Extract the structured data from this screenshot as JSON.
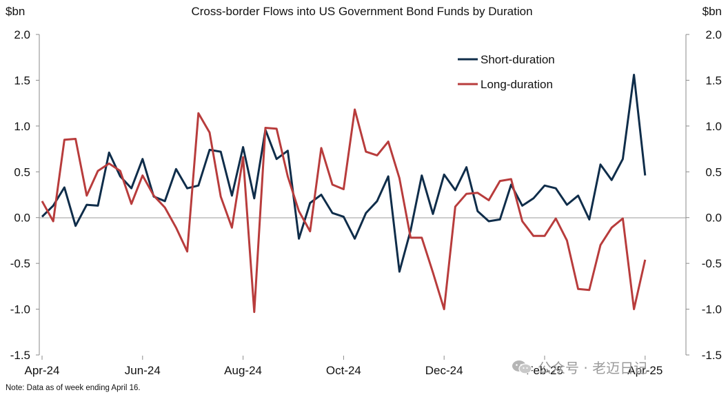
{
  "chart_data": {
    "type": "line",
    "title": "Cross-border Flows into US Government Bond Funds by Duration",
    "ylabel_left": "$bn",
    "ylabel_right": "$bn",
    "ylim": [
      -1.5,
      2.0
    ],
    "yticks": [
      "2.0",
      "1.5",
      "1.0",
      "0.5",
      "0.0",
      "-0.5",
      "-1.0",
      "-1.5"
    ],
    "ytick_values": [
      2.0,
      1.5,
      1.0,
      0.5,
      0.0,
      -0.5,
      -1.0,
      -1.5
    ],
    "xticks": [
      "Apr-24",
      "Jun-24",
      "Aug-24",
      "Oct-24",
      "Dec-24",
      "Feb-25",
      "Apr-25"
    ],
    "xtick_index": [
      0,
      9,
      18,
      27,
      36,
      45,
      54
    ],
    "legend_position": "top-right",
    "grid": false,
    "series": [
      {
        "name": "Short-duration",
        "color": "#0f2d4a",
        "values": [
          0.01,
          0.13,
          0.33,
          -0.09,
          0.14,
          0.13,
          0.71,
          0.45,
          0.32,
          0.64,
          0.23,
          0.18,
          0.53,
          0.32,
          0.35,
          0.74,
          0.72,
          0.24,
          0.77,
          0.21,
          0.96,
          0.64,
          0.73,
          -0.23,
          0.16,
          0.25,
          0.05,
          0.01,
          -0.23,
          0.05,
          0.18,
          0.45,
          -0.59,
          -0.14,
          0.46,
          0.04,
          0.47,
          0.3,
          0.55,
          0.07,
          -0.04,
          -0.02,
          0.36,
          0.13,
          0.21,
          0.35,
          0.32,
          0.14,
          0.24,
          -0.02,
          0.58,
          0.41,
          0.64,
          1.56,
          0.46
        ]
      },
      {
        "name": "Long-duration",
        "color": "#b83c3c",
        "values": [
          0.18,
          -0.04,
          0.85,
          0.86,
          0.24,
          0.51,
          0.59,
          0.51,
          0.15,
          0.46,
          0.24,
          0.11,
          -0.11,
          -0.37,
          1.14,
          0.93,
          0.23,
          -0.11,
          0.66,
          -1.03,
          0.98,
          0.97,
          0.45,
          0.07,
          -0.15,
          0.76,
          0.36,
          0.31,
          1.18,
          0.72,
          0.68,
          0.83,
          0.43,
          -0.22,
          -0.22,
          -0.6,
          -1.0,
          0.12,
          0.26,
          0.27,
          0.19,
          0.4,
          0.42,
          -0.04,
          -0.2,
          -0.2,
          -0.01,
          -0.25,
          -0.78,
          -0.79,
          -0.3,
          -0.11,
          -0.01,
          -1.0,
          -0.46
        ]
      }
    ]
  },
  "note": "Note: Data as of week ending April 16.",
  "watermark": {
    "text": "公众号 · 老迈日记",
    "icon": "wechat-icon"
  }
}
